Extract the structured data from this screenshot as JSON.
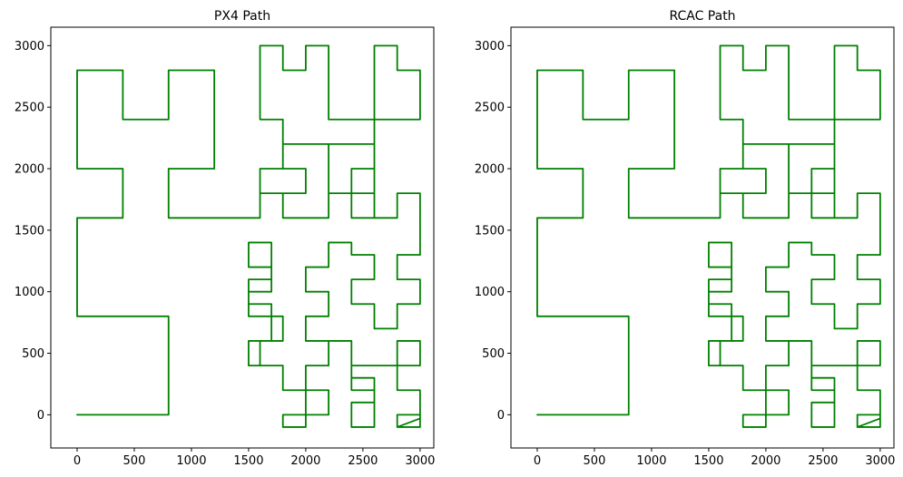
{
  "chart_data": [
    {
      "type": "line",
      "title": "PX4 Path",
      "xlabel": "",
      "ylabel": "",
      "xlim": [
        -230,
        3120
      ],
      "ylim": [
        -270,
        3150
      ],
      "xticks": [
        0,
        500,
        1000,
        1500,
        2000,
        2500,
        3000
      ],
      "yticks": [
        0,
        500,
        1000,
        1500,
        2000,
        2500,
        3000
      ],
      "grid": false,
      "color": "#008000",
      "series": [
        {
          "x": [
            0,
            800,
            800,
            0,
            0,
            400,
            400,
            0,
            0,
            400,
            400,
            800,
            800,
            1200,
            1200,
            800,
            800,
            1600,
            1600,
            1800,
            1800,
            2200,
            2200,
            1800,
            1800,
            2000,
            2000,
            1600,
            1600,
            1800,
            1800,
            1600,
            1600,
            1800,
            1800,
            2000,
            2000,
            2200,
            2200,
            2600,
            2600,
            2800,
            2800,
            3000,
            3000,
            2600,
            2600,
            2400,
            2400,
            2600,
            2600,
            2200,
            2200,
            2600,
            2600,
            2400,
            2400,
            2800,
            2800,
            3000,
            3000
          ],
          "y": [
            0,
            0,
            800,
            800,
            1600,
            1600,
            2000,
            2000,
            2800,
            2800,
            2400,
            2400,
            2800,
            2800,
            2000,
            2000,
            1600,
            1600,
            1800,
            1800,
            1600,
            1600,
            2200,
            2200,
            2000,
            2000,
            1800,
            1800,
            2000,
            2000,
            2400,
            2400,
            3000,
            3000,
            2800,
            2800,
            3000,
            3000,
            2400,
            2400,
            3000,
            3000,
            2800,
            2800,
            2400,
            2400,
            2000,
            2000,
            1600,
            1600,
            1800,
            1800,
            2200,
            2200,
            1600,
            1600,
            1600,
            1600,
            1800,
            1800,
            1300
          ]
        },
        {
          "x": [
            3000,
            2800,
            2800,
            3000,
            3000,
            2800,
            2800,
            2600,
            2600,
            2400,
            2400,
            2600,
            2600,
            2400,
            2400,
            2200,
            2200,
            2000,
            2000,
            2200,
            2200,
            2000,
            2000,
            2200,
            2200,
            2000,
            2000,
            1800,
            1800,
            1600,
            1600,
            1800,
            1800,
            1500,
            1500,
            1700,
            1700,
            1500,
            1500,
            1700,
            1700,
            1500,
            1500,
            1700,
            1700,
            1500,
            1500,
            1800,
            1800,
            2000,
            2000,
            1800,
            1800,
            2000,
            2000,
            2200,
            2200,
            2000,
            2000,
            2200,
            2200,
            2400,
            2400,
            2600,
            2600,
            2400,
            2400,
            2600,
            2600,
            2400,
            2400,
            2800,
            2800,
            3000,
            3000,
            2800,
            2800,
            3000,
            3000,
            2800,
            2800,
            3000,
            3000,
            2800,
            2800,
            3000
          ],
          "y": [
            1300,
            1300,
            1100,
            1100,
            900,
            900,
            700,
            700,
            900,
            900,
            1100,
            1100,
            1300,
            1300,
            1400,
            1400,
            1200,
            1200,
            1000,
            1000,
            800,
            800,
            600,
            600,
            400,
            400,
            200,
            200,
            400,
            400,
            600,
            600,
            800,
            800,
            1000,
            1000,
            1200,
            1200,
            1400,
            1400,
            1100,
            1100,
            900,
            900,
            600,
            600,
            400,
            400,
            200,
            200,
            0,
            0,
            -100,
            -100,
            0,
            0,
            200,
            200,
            400,
            400,
            600,
            600,
            300,
            300,
            100,
            100,
            -100,
            -100,
            200,
            200,
            400,
            400,
            600,
            600,
            400,
            400,
            200,
            200,
            0,
            0,
            -100,
            -100,
            0,
            0,
            -100,
            -30
          ]
        }
      ]
    },
    {
      "type": "line",
      "title": "RCAC Path",
      "xlabel": "",
      "ylabel": "",
      "xlim": [
        -230,
        3120
      ],
      "ylim": [
        -270,
        3150
      ],
      "xticks": [
        0,
        500,
        1000,
        1500,
        2000,
        2500,
        3000
      ],
      "yticks": [
        0,
        500,
        1000,
        1500,
        2000,
        2500,
        3000
      ],
      "grid": false,
      "color": "#008000",
      "series": [
        {
          "x": [
            0,
            800,
            800,
            0,
            0,
            400,
            400,
            0,
            0,
            400,
            400,
            800,
            800,
            1200,
            1200,
            800,
            800,
            1600,
            1600,
            1800,
            1800,
            2200,
            2200,
            1800,
            1800,
            2000,
            2000,
            1600,
            1600,
            1800,
            1800,
            1600,
            1600,
            1800,
            1800,
            2000,
            2000,
            2200,
            2200,
            2600,
            2600,
            2800,
            2800,
            3000,
            3000,
            2600,
            2600,
            2400,
            2400,
            2600,
            2600,
            2200,
            2200,
            2600,
            2600,
            2400,
            2400,
            2800,
            2800,
            3000,
            3000
          ],
          "y": [
            0,
            0,
            800,
            800,
            1600,
            1600,
            2000,
            2000,
            2800,
            2800,
            2400,
            2400,
            2800,
            2800,
            2000,
            2000,
            1600,
            1600,
            1800,
            1800,
            1600,
            1600,
            2200,
            2200,
            2000,
            2000,
            1800,
            1800,
            2000,
            2000,
            2400,
            2400,
            3000,
            3000,
            2800,
            2800,
            3000,
            3000,
            2400,
            2400,
            3000,
            3000,
            2800,
            2800,
            2400,
            2400,
            2000,
            2000,
            1600,
            1600,
            1800,
            1800,
            2200,
            2200,
            1600,
            1600,
            1600,
            1600,
            1800,
            1800,
            1300
          ]
        },
        {
          "x": [
            3000,
            2800,
            2800,
            3000,
            3000,
            2800,
            2800,
            2600,
            2600,
            2400,
            2400,
            2600,
            2600,
            2400,
            2400,
            2200,
            2200,
            2000,
            2000,
            2200,
            2200,
            2000,
            2000,
            2200,
            2200,
            2000,
            2000,
            1800,
            1800,
            1600,
            1600,
            1800,
            1800,
            1500,
            1500,
            1700,
            1700,
            1500,
            1500,
            1700,
            1700,
            1500,
            1500,
            1700,
            1700,
            1500,
            1500,
            1800,
            1800,
            2000,
            2000,
            1800,
            1800,
            2000,
            2000,
            2200,
            2200,
            2000,
            2000,
            2200,
            2200,
            2400,
            2400,
            2600,
            2600,
            2400,
            2400,
            2600,
            2600,
            2400,
            2400,
            2800,
            2800,
            3000,
            3000,
            2800,
            2800,
            3000,
            3000,
            2800,
            2800,
            3000,
            3000,
            2800,
            2800,
            3000
          ],
          "y": [
            1300,
            1300,
            1100,
            1100,
            900,
            900,
            700,
            700,
            900,
            900,
            1100,
            1100,
            1300,
            1300,
            1400,
            1400,
            1200,
            1200,
            1000,
            1000,
            800,
            800,
            600,
            600,
            400,
            400,
            200,
            200,
            400,
            400,
            600,
            600,
            800,
            800,
            1000,
            1000,
            1200,
            1200,
            1400,
            1400,
            1100,
            1100,
            900,
            900,
            600,
            600,
            400,
            400,
            200,
            200,
            0,
            0,
            -100,
            -100,
            0,
            0,
            200,
            200,
            400,
            400,
            600,
            600,
            300,
            300,
            100,
            100,
            -100,
            -100,
            200,
            200,
            400,
            400,
            600,
            600,
            400,
            400,
            200,
            200,
            0,
            0,
            -100,
            -100,
            0,
            0,
            -100,
            -30
          ]
        }
      ]
    }
  ]
}
